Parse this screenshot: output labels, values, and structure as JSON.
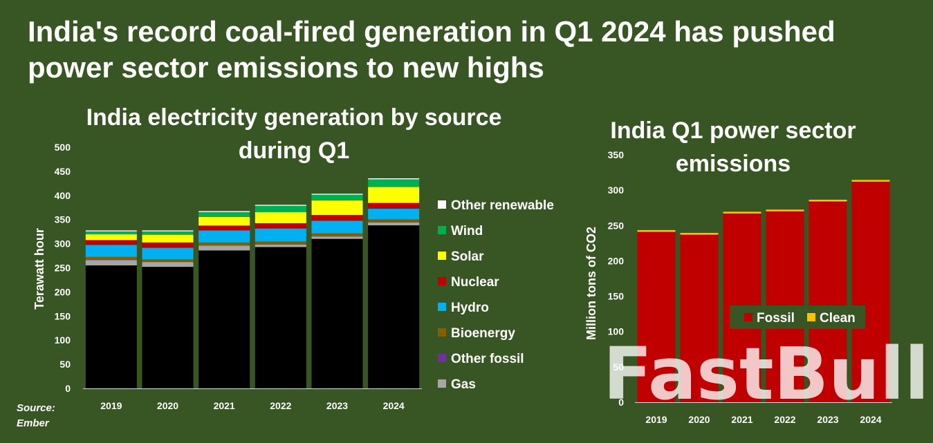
{
  "title": "India's record coal-fired generation in Q1 2024 has pushed power sector emissions to new highs",
  "source": {
    "line1": "Source:",
    "line2": "Ember"
  },
  "watermark": "FastBull",
  "colors": {
    "background": "#375623",
    "Gas": "#a6a6a6",
    "Other fossil": "#7030a0",
    "Bioenergy": "#806000",
    "Hydro": "#00b0f0",
    "Nuclear": "#c00000",
    "Solar": "#ffff00",
    "Wind": "#00b050",
    "Other renewable": "#ffffff",
    "Coal": "#000000",
    "Fossil": "#c00000",
    "Clean": "#ffc000"
  },
  "chart_data": [
    {
      "type": "bar",
      "stacked": true,
      "title": "India electricity generation by source during Q1",
      "ylabel": "Terawatt hour",
      "xlabel": "",
      "categories": [
        "2019",
        "2020",
        "2021",
        "2022",
        "2023",
        "2024"
      ],
      "ylim": [
        0,
        500
      ],
      "yticks": [
        0,
        50,
        100,
        150,
        200,
        250,
        300,
        350,
        400,
        450,
        500
      ],
      "grid": false,
      "legend_position": "right",
      "series": [
        {
          "key": "Coal",
          "values": [
            255,
            252,
            286,
            293,
            310,
            338
          ]
        },
        {
          "name": "Gas",
          "values": [
            11,
            10,
            10,
            5,
            5,
            6
          ]
        },
        {
          "name": "Other fossil",
          "values": [
            0.5,
            0.5,
            0.5,
            0.5,
            0.5,
            0.5
          ]
        },
        {
          "name": "Bioenergy",
          "values": [
            6,
            5,
            6,
            6,
            6,
            6
          ]
        },
        {
          "name": "Hydro",
          "values": [
            25,
            24,
            25,
            27,
            26,
            22
          ]
        },
        {
          "name": "Nuclear",
          "values": [
            10,
            11,
            10,
            11,
            12,
            12
          ]
        },
        {
          "name": "Solar",
          "values": [
            12,
            16,
            18,
            23,
            30,
            33
          ]
        },
        {
          "name": "Wind",
          "values": [
            6,
            7,
            10,
            13,
            12,
            16
          ]
        },
        {
          "name": "Other renewable",
          "values": [
            2,
            2,
            2,
            2,
            2,
            2
          ]
        }
      ],
      "legend_order": [
        "Other renewable",
        "Wind",
        "Solar",
        "Nuclear",
        "Hydro",
        "Bioenergy",
        "Other fossil",
        "Gas"
      ]
    },
    {
      "type": "bar",
      "stacked": true,
      "title": "India Q1 power sector emissions",
      "ylabel": "Million tons of CO2",
      "xlabel": "",
      "categories": [
        "2019",
        "2020",
        "2021",
        "2022",
        "2023",
        "2024"
      ],
      "ylim": [
        0,
        350
      ],
      "yticks": [
        0,
        50,
        100,
        150,
        200,
        250,
        300,
        350
      ],
      "grid": false,
      "legend_position": "center-right",
      "series": [
        {
          "name": "Fossil",
          "values": [
            241,
            237,
            267,
            270,
            284,
            312
          ]
        },
        {
          "name": "Clean",
          "values": [
            2.5,
            2.5,
            2.5,
            2.5,
            2.5,
            2.5
          ]
        }
      ]
    }
  ]
}
